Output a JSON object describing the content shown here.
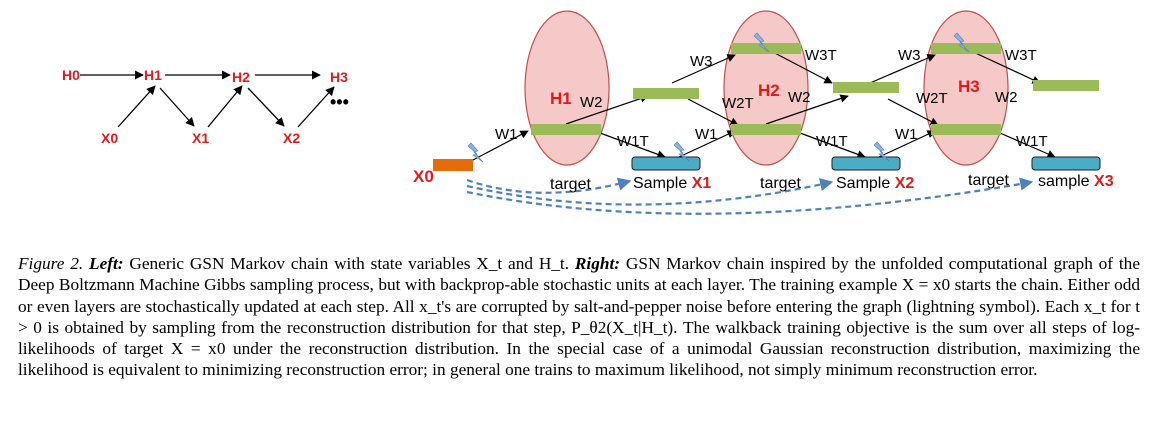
{
  "left_diagram": {
    "h_labels": [
      "H0",
      "H1",
      "H2",
      "H3"
    ],
    "x_labels": [
      "X0",
      "X1",
      "X2"
    ],
    "ellipsis": "•••"
  },
  "right_diagram": {
    "x0_label": "X0",
    "hidden_labels": [
      "H1",
      "H2",
      "H3"
    ],
    "weight_labels": {
      "W1": "W1",
      "W2": "W2",
      "W3": "W3",
      "W1T": "W1T",
      "W2T": "W2T",
      "W3T": "W3T"
    },
    "target_label": "target",
    "sample_labels": [
      {
        "word": "Sample",
        "var": "X1"
      },
      {
        "word": "Sample",
        "var": "X2"
      },
      {
        "word": "sample",
        "var": "X3"
      }
    ],
    "colors": {
      "hidden_ellipse_fill": "#f6c9c9",
      "hidden_ellipse_stroke": "#c0504d",
      "green_unit": "#9bbb59",
      "orange_unit": "#e46c0a",
      "blue_unit": "#4bacc6",
      "arrow_dashed": "#4f81bd",
      "lightning": "#8db3e2",
      "label_red": "#e31a1c"
    }
  },
  "caption": {
    "figure_label": "Figure 2.",
    "left_label": "Left:",
    "left_text": "Generic GSN Markov chain with state variables X_t and H_t.",
    "right_label": "Right:",
    "right_text": "GSN Markov chain inspired by the unfolded computational graph of the Deep Boltzmann Machine Gibbs sampling process, but with backprop-able stochastic units at each layer. The training example X = x0 starts the chain. Either odd or even layers are stochastically updated at each step. All x_t's are corrupted by salt-and-pepper noise before entering the graph (lightning symbol). Each x_t for t > 0 is obtained by sampling from the reconstruction distribution for that step, P_θ2(X_t|H_t). The walkback training objective is the sum over all steps of log-likelihoods of target X = x0 under the reconstruction distribution. In the special case of a unimodal Gaussian reconstruction distribution, maximizing the likelihood is equivalent to minimizing reconstruction error; in general one trains to maximum likelihood, not simply minimum reconstruction error."
  }
}
